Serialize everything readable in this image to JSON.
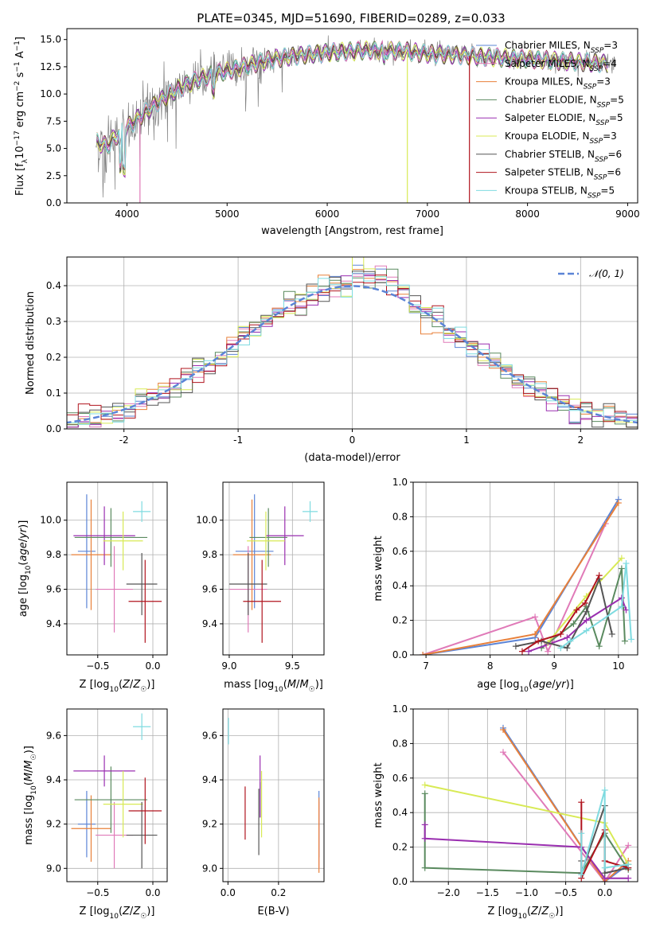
{
  "figure": {
    "title": "PLATE=0345, MJD=51690, FIBERID=0289, z=0.033"
  },
  "colors": {
    "Chabrier MILES": "#5b84d6",
    "Salpeter MILES": "#e07ab8",
    "Kroupa MILES": "#e8803a",
    "Chabrier ELODIE": "#5a8a5f",
    "Salpeter ELODIE": "#9a2fb0",
    "Kroupa ELODIE": "#d8ea55",
    "Chabrier STELIB": "#555555",
    "Salpeter STELIB": "#b0141e",
    "Kroupa STELIB": "#7fdbe0",
    "data": "#808080",
    "gaussian": "#5b84d6"
  },
  "chart_data": [
    {
      "id": "spectrum",
      "type": "line",
      "xlabel": "wavelength [Angstrom, rest frame]",
      "ylabel": "Flux [f_λ10^-17 erg cm^-2 s^-1 A^-1]",
      "xlim": [
        3400,
        9100
      ],
      "ylim": [
        0,
        16
      ],
      "xticks": [
        4000,
        5000,
        6000,
        7000,
        8000,
        9000
      ],
      "yticks": [
        0.0,
        2.5,
        5.0,
        7.5,
        10.0,
        12.5,
        15.0
      ],
      "grid": false,
      "legend_position": "top-right",
      "legend": [
        "Chabrier MILES, N_SSP=3",
        "Salpeter MILES, N_SSP=4",
        "Kroupa MILES, N_SSP=3",
        "Chabrier ELODIE, N_SSP=5",
        "Salpeter ELODIE, N_SSP=5",
        "Kroupa ELODIE, N_SSP=3",
        "Chabrier STELIB, N_SSP=6",
        "Salpeter STELIB, N_SSP=6",
        "Kroupa STELIB, N_SSP=5"
      ],
      "continuum": {
        "x": [
          3700,
          3800,
          3900,
          4000,
          4100,
          4200,
          4300,
          4400,
          4500,
          4600,
          4700,
          4800,
          4900,
          5000,
          5200,
          5400,
          5600,
          5800,
          6000,
          6200,
          6400,
          6600,
          6800,
          7000,
          7200,
          7400,
          7600,
          7800,
          8000,
          8200,
          8400,
          8600,
          8800
        ],
        "y": [
          5.6,
          5.2,
          6.2,
          6.9,
          7.7,
          8.4,
          9.2,
          9.8,
          10.4,
          10.9,
          11.3,
          11.6,
          11.9,
          12.1,
          12.6,
          13.1,
          13.4,
          13.6,
          13.8,
          13.9,
          14.0,
          14.0,
          13.9,
          13.7,
          13.6,
          13.5,
          13.4,
          13.3,
          13.2,
          13.1,
          13.0,
          12.9,
          12.8
        ]
      },
      "dropouts": [
        {
          "series": "Salpeter MILES",
          "x": 4130,
          "to": 0
        },
        {
          "series": "Kroupa ELODIE",
          "x": 6800,
          "to": 0
        },
        {
          "series": "Salpeter STELIB",
          "x": 7420,
          "to": 0
        }
      ]
    },
    {
      "id": "residuals",
      "type": "histogram",
      "xlabel": "(data-model)/error",
      "ylabel": "Normed distribution",
      "xlim": [
        -2.5,
        2.5
      ],
      "ylim": [
        0,
        0.48
      ],
      "xticks": [
        -2,
        -1,
        0,
        1,
        2
      ],
      "yticks": [
        0.0,
        0.1,
        0.2,
        0.3,
        0.4
      ],
      "grid": true,
      "legend_position": "top-right",
      "legend": [
        "𝒩(0, 1)"
      ],
      "bin_width": 0.1,
      "curve": "normal pdf, mean 0, sigma 1"
    },
    {
      "id": "age-vs-Z",
      "type": "errorbar",
      "xlabel": "Z [log10(Z/Z☉)]",
      "ylabel": "age [log10(age/yr)]",
      "xlim": [
        -0.78,
        0.13
      ],
      "ylim": [
        9.22,
        10.22
      ],
      "xticks": [
        -0.5,
        0.0
      ],
      "yticks": [
        9.4,
        9.6,
        9.8,
        10.0
      ],
      "grid": true,
      "points": [
        {
          "series": "Chabrier MILES",
          "x": -0.6,
          "y": 9.82,
          "xerr": 0.08,
          "yerr": 0.33
        },
        {
          "series": "Salpeter MILES",
          "x": -0.35,
          "y": 9.6,
          "xerr": 0.17,
          "yerr": 0.25
        },
        {
          "series": "Kroupa MILES",
          "x": -0.56,
          "y": 9.8,
          "xerr": 0.18,
          "yerr": 0.32
        },
        {
          "series": "Chabrier ELODIE",
          "x": -0.38,
          "y": 9.9,
          "xerr": 0.33,
          "yerr": 0.17
        },
        {
          "series": "Salpeter ELODIE",
          "x": -0.44,
          "y": 9.91,
          "xerr": 0.28,
          "yerr": 0.17
        },
        {
          "series": "Kroupa ELODIE",
          "x": -0.27,
          "y": 9.88,
          "xerr": 0.18,
          "yerr": 0.17
        },
        {
          "series": "Chabrier STELIB",
          "x": -0.1,
          "y": 9.63,
          "xerr": 0.14,
          "yerr": 0.18
        },
        {
          "series": "Salpeter STELIB",
          "x": -0.07,
          "y": 9.53,
          "xerr": 0.15,
          "yerr": 0.24
        },
        {
          "series": "Kroupa STELIB",
          "x": -0.1,
          "y": 10.05,
          "xerr": 0.08,
          "yerr": 0.06
        }
      ]
    },
    {
      "id": "age-vs-mass",
      "type": "errorbar",
      "xlabel": "mass [log10(M/M☉)]",
      "ylabel": "",
      "xlim": [
        8.95,
        9.75
      ],
      "ylim": [
        9.22,
        10.22
      ],
      "xticks": [
        9.0,
        9.5
      ],
      "yticks": [
        9.4,
        9.6,
        9.8,
        10.0
      ],
      "grid": true,
      "points": [
        {
          "series": "Chabrier MILES",
          "x": 9.2,
          "y": 9.82,
          "xerr": 0.15,
          "yerr": 0.33
        },
        {
          "series": "Salpeter MILES",
          "x": 9.15,
          "y": 9.6,
          "xerr": 0.15,
          "yerr": 0.25
        },
        {
          "series": "Kroupa MILES",
          "x": 9.18,
          "y": 9.8,
          "xerr": 0.15,
          "yerr": 0.32
        },
        {
          "series": "Chabrier ELODIE",
          "x": 9.31,
          "y": 9.9,
          "xerr": 0.15,
          "yerr": 0.17
        },
        {
          "series": "Salpeter ELODIE",
          "x": 9.44,
          "y": 9.91,
          "xerr": 0.15,
          "yerr": 0.17
        },
        {
          "series": "Kroupa ELODIE",
          "x": 9.29,
          "y": 9.88,
          "xerr": 0.15,
          "yerr": 0.17
        },
        {
          "series": "Chabrier STELIB",
          "x": 9.15,
          "y": 9.63,
          "xerr": 0.15,
          "yerr": 0.18
        },
        {
          "series": "Salpeter STELIB",
          "x": 9.26,
          "y": 9.53,
          "xerr": 0.15,
          "yerr": 0.24
        },
        {
          "series": "Kroupa STELIB",
          "x": 9.64,
          "y": 10.05,
          "xerr": 0.06,
          "yerr": 0.06
        }
      ]
    },
    {
      "id": "massweight-vs-age",
      "type": "line",
      "xlabel": "age [log10(age/yr)]",
      "ylabel": "mass weight",
      "xlim": [
        6.8,
        10.3
      ],
      "ylim": [
        0,
        1.0
      ],
      "xticks": [
        7,
        8,
        9,
        10
      ],
      "yticks": [
        0.0,
        0.2,
        0.4,
        0.6,
        0.8,
        1.0
      ],
      "grid": true,
      "series": [
        {
          "series": "Chabrier MILES",
          "x": [
            6.95,
            8.7,
            10.0
          ],
          "y": [
            0.0,
            0.1,
            0.9
          ]
        },
        {
          "series": "Salpeter MILES",
          "x": [
            6.95,
            8.7,
            8.9,
            9.8
          ],
          "y": [
            0.0,
            0.22,
            0.02,
            0.76
          ]
        },
        {
          "series": "Kroupa MILES",
          "x": [
            6.95,
            8.7,
            10.0
          ],
          "y": [
            0.0,
            0.12,
            0.88
          ]
        },
        {
          "series": "Chabrier ELODIE",
          "x": [
            8.8,
            9.3,
            9.5,
            9.7,
            10.05,
            10.1
          ],
          "y": [
            0.04,
            0.18,
            0.28,
            0.05,
            0.5,
            0.08
          ]
        },
        {
          "series": "Salpeter ELODIE",
          "x": [
            8.6,
            9.2,
            9.5,
            10.05,
            10.12
          ],
          "y": [
            0.02,
            0.1,
            0.2,
            0.33,
            0.26
          ]
        },
        {
          "series": "Kroupa ELODIE",
          "x": [
            8.9,
            9.5,
            10.05
          ],
          "y": [
            0.07,
            0.34,
            0.56
          ]
        },
        {
          "series": "Chabrier STELIB",
          "x": [
            8.4,
            8.8,
            9.2,
            9.5,
            9.7,
            9.9
          ],
          "y": [
            0.05,
            0.08,
            0.04,
            0.25,
            0.44,
            0.12
          ]
        },
        {
          "series": "Salpeter STELIB",
          "x": [
            8.5,
            8.75,
            9.1,
            9.35,
            9.48,
            9.7
          ],
          "y": [
            0.02,
            0.08,
            0.12,
            0.26,
            0.3,
            0.46
          ]
        },
        {
          "series": "Kroupa STELIB",
          "x": [
            9.1,
            9.25,
            9.5,
            10.05,
            10.12,
            10.2
          ],
          "y": [
            0.04,
            0.08,
            0.14,
            0.28,
            0.53,
            0.09
          ]
        }
      ]
    },
    {
      "id": "mass-vs-Z",
      "type": "errorbar",
      "xlabel": "Z [log10(Z/Z☉)]",
      "ylabel": "mass [log10(M/M☉)]",
      "xlim": [
        -0.78,
        0.13
      ],
      "ylim": [
        8.94,
        9.72
      ],
      "xticks": [
        -0.5,
        0.0
      ],
      "yticks": [
        9.0,
        9.2,
        9.4,
        9.6
      ],
      "grid": true,
      "points": [
        {
          "series": "Chabrier MILES",
          "x": -0.6,
          "y": 9.2,
          "xerr": 0.08,
          "yerr": 0.15
        },
        {
          "series": "Salpeter MILES",
          "x": -0.35,
          "y": 9.15,
          "xerr": 0.17,
          "yerr": 0.15
        },
        {
          "series": "Kroupa MILES",
          "x": -0.56,
          "y": 9.18,
          "xerr": 0.18,
          "yerr": 0.15
        },
        {
          "series": "Chabrier ELODIE",
          "x": -0.38,
          "y": 9.31,
          "xerr": 0.33,
          "yerr": 0.15
        },
        {
          "series": "Salpeter ELODIE",
          "x": -0.44,
          "y": 9.44,
          "xerr": 0.28,
          "yerr": 0.07
        },
        {
          "series": "Kroupa ELODIE",
          "x": -0.27,
          "y": 9.29,
          "xerr": 0.18,
          "yerr": 0.15
        },
        {
          "series": "Chabrier STELIB",
          "x": -0.1,
          "y": 9.15,
          "xerr": 0.14,
          "yerr": 0.15
        },
        {
          "series": "Salpeter STELIB",
          "x": -0.07,
          "y": 9.26,
          "xerr": 0.15,
          "yerr": 0.15
        },
        {
          "series": "Kroupa STELIB",
          "x": -0.1,
          "y": 9.64,
          "xerr": 0.08,
          "yerr": 0.06
        }
      ]
    },
    {
      "id": "mass-vs-ebv",
      "type": "errorbar",
      "xlabel": "E(B-V)",
      "ylabel": "",
      "xlim": [
        -0.02,
        0.38
      ],
      "ylim": [
        8.94,
        9.72
      ],
      "xticks": [
        0.0,
        0.2
      ],
      "yticks": [
        9.0,
        9.2,
        9.4,
        9.6
      ],
      "grid": true,
      "points": [
        {
          "series": "Chabrier MILES",
          "x": 0.36,
          "y": 9.2,
          "xerr": 0.0,
          "yerr": 0.15
        },
        {
          "series": "Salpeter MILES",
          "x": 0.36,
          "y": 9.15,
          "xerr": 0.0,
          "yerr": 0.15
        },
        {
          "series": "Kroupa MILES",
          "x": 0.36,
          "y": 9.15,
          "xerr": 0.0,
          "yerr": 0.17
        },
        {
          "series": "Chabrier ELODIE",
          "x": 0.127,
          "y": 9.31,
          "xerr": 0.0,
          "yerr": 0.08
        },
        {
          "series": "Salpeter ELODIE",
          "x": 0.127,
          "y": 9.37,
          "xerr": 0.0,
          "yerr": 0.14
        },
        {
          "series": "Kroupa ELODIE",
          "x": 0.133,
          "y": 9.29,
          "xerr": 0.0,
          "yerr": 0.15
        },
        {
          "series": "Chabrier STELIB",
          "x": 0.122,
          "y": 9.21,
          "xerr": 0.0,
          "yerr": 0.15
        },
        {
          "series": "Salpeter STELIB",
          "x": 0.068,
          "y": 9.25,
          "xerr": 0.0,
          "yerr": 0.12
        },
        {
          "series": "Kroupa STELIB",
          "x": 0.002,
          "y": 9.62,
          "xerr": 0.0,
          "yerr": 0.06
        }
      ]
    },
    {
      "id": "massweight-vs-Z",
      "type": "line",
      "xlabel": "Z [log10(Z/Z☉)]",
      "ylabel": "mass weight",
      "xlim": [
        -2.45,
        0.42
      ],
      "ylim": [
        0,
        1.0
      ],
      "xticks": [
        -2.0,
        -1.5,
        -1.0,
        -0.5,
        0.0
      ],
      "yticks": [
        0.0,
        0.2,
        0.4,
        0.6,
        0.8,
        1.0
      ],
      "grid": true,
      "series": [
        {
          "series": "Chabrier MILES",
          "x": [
            -1.3,
            0.0,
            0.3
          ],
          "y": [
            0.89,
            0.0,
            0.1
          ]
        },
        {
          "series": "Salpeter MILES",
          "x": [
            -1.3,
            0.0,
            0.3
          ],
          "y": [
            0.75,
            0.0,
            0.21
          ]
        },
        {
          "series": "Kroupa MILES",
          "x": [
            -1.3,
            0.0,
            0.3
          ],
          "y": [
            0.88,
            0.0,
            0.12
          ]
        },
        {
          "series": "Chabrier ELODIE",
          "x": [
            -2.3,
            -2.3,
            -0.3,
            0.0,
            0.3
          ],
          "y": [
            0.51,
            0.08,
            0.05,
            0.28,
            0.07
          ]
        },
        {
          "series": "Salpeter ELODIE",
          "x": [
            -2.3,
            -2.3,
            -0.3,
            0.0,
            0.3
          ],
          "y": [
            0.33,
            0.25,
            0.2,
            0.02,
            0.02
          ]
        },
        {
          "series": "Kroupa ELODIE",
          "x": [
            -2.3,
            0.0,
            0.3
          ],
          "y": [
            0.56,
            0.34,
            0.1
          ]
        },
        {
          "series": "Chabrier STELIB",
          "x": [
            -0.3,
            -0.3,
            0.0,
            0.0,
            0.3
          ],
          "y": [
            0.12,
            0.05,
            0.44,
            0.05,
            0.08
          ]
        },
        {
          "series": "Salpeter STELIB",
          "x": [
            -0.3,
            -0.3,
            0.0,
            0.0,
            0.3
          ],
          "y": [
            0.46,
            0.02,
            0.3,
            0.12,
            0.08
          ]
        },
        {
          "series": "Kroupa STELIB",
          "x": [
            -0.3,
            -0.3,
            0.0,
            0.0,
            0.3
          ],
          "y": [
            0.28,
            0.04,
            0.53,
            0.08,
            0.1
          ]
        }
      ]
    }
  ]
}
